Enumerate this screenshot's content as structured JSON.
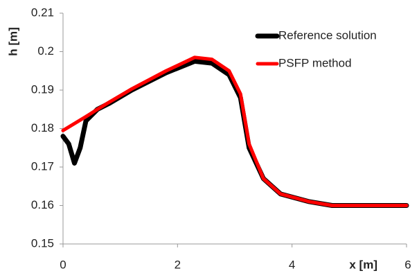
{
  "chart_data": {
    "type": "line",
    "x_label": "x [m]",
    "y_label": "h [m]",
    "x": [
      0,
      0.1,
      0.2,
      0.3,
      0.4,
      0.6,
      0.8,
      1.2,
      1.8,
      2.3,
      2.6,
      2.9,
      3.1,
      3.25,
      3.5,
      3.8,
      4.3,
      4.7,
      6
    ],
    "series": [
      {
        "name": "Reference solution",
        "color": "#000000",
        "width": 7,
        "values": [
          0.178,
          0.176,
          0.171,
          0.175,
          0.182,
          0.185,
          0.1865,
          0.19,
          0.1945,
          0.1975,
          0.197,
          0.194,
          0.188,
          0.175,
          0.167,
          0.163,
          0.161,
          0.16,
          0.16
        ]
      },
      {
        "name": "PSFP method",
        "color": "#ff0000",
        "width": 5,
        "values": [
          0.1795,
          0.1804,
          0.1813,
          0.1822,
          0.1831,
          0.185,
          0.1868,
          0.1903,
          0.195,
          0.1985,
          0.198,
          0.195,
          0.189,
          0.176,
          0.167,
          0.163,
          0.161,
          0.16,
          0.16
        ]
      }
    ],
    "xlim": [
      0,
      6
    ],
    "xticks": [
      0,
      2,
      4,
      6
    ],
    "ylim": [
      0.15,
      0.21
    ],
    "yticks": [
      0.15,
      0.16,
      0.17,
      0.18,
      0.19,
      0.2,
      0.21
    ],
    "grid": false,
    "legend": "upper right"
  }
}
